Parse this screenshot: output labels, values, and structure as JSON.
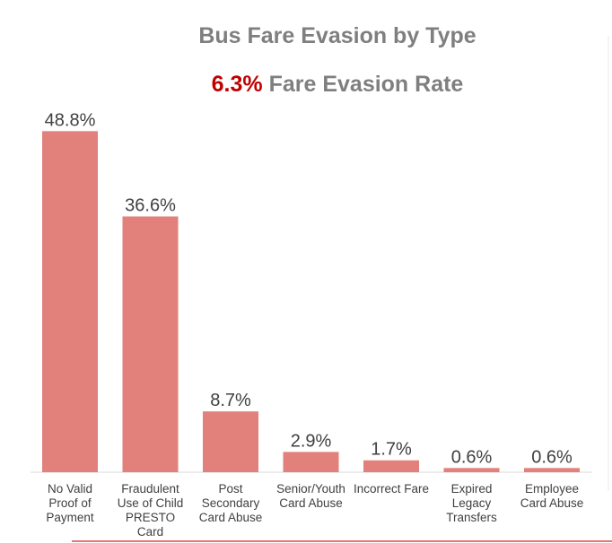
{
  "chart_data": {
    "type": "bar",
    "title": "Bus Fare Evasion by Type",
    "subtitle_rate": "6.3%",
    "subtitle_text": "Fare Evasion Rate",
    "categories": [
      [
        "No Valid",
        "Proof of",
        "Payment"
      ],
      [
        "Fraudulent",
        "Use of Child",
        "PRESTO",
        "Card"
      ],
      [
        "Post",
        "Secondary",
        "Card Abuse"
      ],
      [
        "Senior/Youth",
        "Card Abuse"
      ],
      [
        "Incorrect Fare"
      ],
      [
        "Expired",
        "Legacy",
        "Transfers"
      ],
      [
        "Employee",
        "Card Abuse"
      ]
    ],
    "values": [
      48.8,
      36.6,
      8.7,
      2.9,
      1.7,
      0.6,
      0.6
    ],
    "data_labels": [
      "48.8%",
      "36.6%",
      "8.7%",
      "2.9%",
      "1.7%",
      "0.6%",
      "0.6%"
    ],
    "xlabel": "",
    "ylabel": "",
    "ylim": [
      0,
      50
    ],
    "grid": false,
    "bar_color": "#e2807b",
    "label_color": "#404040",
    "axis_color": "#d9d9d9",
    "title_color": "#7f7f7f",
    "rate_color": "#c00000",
    "accent_line_color": "#e0474c"
  }
}
